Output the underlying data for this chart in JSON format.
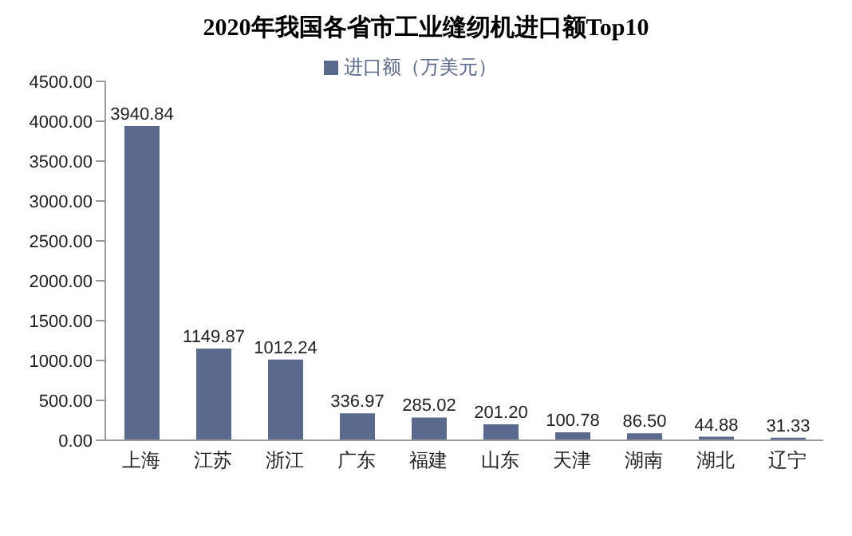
{
  "chart_data": {
    "type": "bar",
    "title": "2020年我国各省市工业缝纫机进口额Top10",
    "categories": [
      "上海",
      "江苏",
      "浙江",
      "广东",
      "福建",
      "山东",
      "天津",
      "湖南",
      "湖北",
      "辽宁"
    ],
    "series": [
      {
        "name": "进口额（万美元）",
        "color": "#5b6a8c",
        "values": [
          3940.84,
          1149.87,
          1012.24,
          336.97,
          285.02,
          201.2,
          100.78,
          86.5,
          44.88,
          31.33
        ],
        "value_labels": [
          "3940.84",
          "1149.87",
          "1012.24",
          "336.97",
          "285.02",
          "201.20",
          "100.78",
          "86.50",
          "44.88",
          "31.33"
        ]
      }
    ],
    "ylim": [
      0,
      4500
    ],
    "yticks": [
      {
        "value": 0,
        "label": "0.00"
      },
      {
        "value": 500,
        "label": "500.00"
      },
      {
        "value": 1000,
        "label": "1000.00"
      },
      {
        "value": 1500,
        "label": "1500.00"
      },
      {
        "value": 2000,
        "label": "2000.00"
      },
      {
        "value": 2500,
        "label": "2500.00"
      },
      {
        "value": 3000,
        "label": "3000.00"
      },
      {
        "value": 3500,
        "label": "3500.00"
      },
      {
        "value": 4000,
        "label": "4000.00"
      },
      {
        "value": 4500,
        "label": "4500.00"
      }
    ],
    "legend": "top",
    "grid": false
  }
}
